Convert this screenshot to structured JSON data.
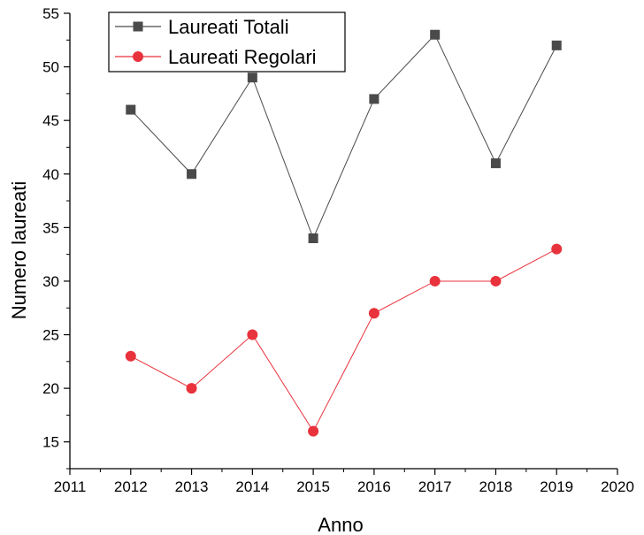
{
  "chart_data": {
    "type": "line",
    "xlabel": "Anno",
    "ylabel": "Numero laureati",
    "xlim": [
      2011,
      2020
    ],
    "ylim": [
      12.5,
      55
    ],
    "xticks": [
      2011,
      2012,
      2013,
      2014,
      2015,
      2016,
      2017,
      2018,
      2019,
      2020
    ],
    "yticks": [
      15,
      20,
      25,
      30,
      35,
      40,
      45,
      50,
      55
    ],
    "grid": false,
    "legend_position": "top-left",
    "x": [
      2012,
      2013,
      2014,
      2015,
      2016,
      2017,
      2018,
      2019
    ],
    "series": [
      {
        "name": "Laureati Totali",
        "values": [
          46,
          40,
          49,
          34,
          47,
          53,
          41,
          52
        ],
        "color": "#4a4a4a",
        "marker": "square"
      },
      {
        "name": "Laureati Regolari",
        "values": [
          23,
          20,
          25,
          16,
          27,
          30,
          30,
          33
        ],
        "color": "#e8323c",
        "marker": "circle"
      }
    ]
  }
}
